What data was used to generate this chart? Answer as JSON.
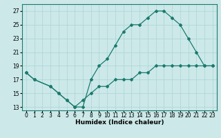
{
  "xlabel": "Humidex (Indice chaleur)",
  "line1_x": [
    0,
    1,
    3,
    4,
    5,
    6,
    7,
    8,
    9,
    10,
    11,
    12,
    13,
    14,
    15,
    16,
    17,
    18,
    19,
    20,
    21,
    22,
    23
  ],
  "line1_y": [
    18,
    17,
    16,
    15,
    14,
    13,
    13,
    17,
    19,
    20,
    22,
    24,
    25,
    25,
    26,
    27,
    27,
    26,
    25,
    23,
    21,
    19,
    19
  ],
  "line2_x": [
    0,
    1,
    3,
    4,
    5,
    6,
    7,
    8,
    9,
    10,
    11,
    12,
    13,
    14,
    15,
    16,
    17,
    18,
    19,
    20,
    21,
    22,
    23
  ],
  "line2_y": [
    18,
    17,
    16,
    15,
    14,
    13,
    14,
    15,
    16,
    16,
    17,
    17,
    17,
    18,
    18,
    19,
    19,
    19,
    19,
    19,
    19,
    19,
    19
  ],
  "xlim": [
    -0.5,
    23.5
  ],
  "ylim": [
    12.5,
    28
  ],
  "yticks": [
    13,
    15,
    17,
    19,
    21,
    23,
    25,
    27
  ],
  "xticks": [
    0,
    1,
    2,
    3,
    4,
    5,
    6,
    7,
    8,
    9,
    10,
    11,
    12,
    13,
    14,
    15,
    16,
    17,
    18,
    19,
    20,
    21,
    22,
    23
  ],
  "color": "#1a7a6e",
  "bg_color": "#cce8e8",
  "grid_color": "#aad4d4",
  "marker": "D",
  "markersize": 2,
  "linewidth": 0.9,
  "label_fontsize": 6.5,
  "tick_fontsize": 5.5
}
